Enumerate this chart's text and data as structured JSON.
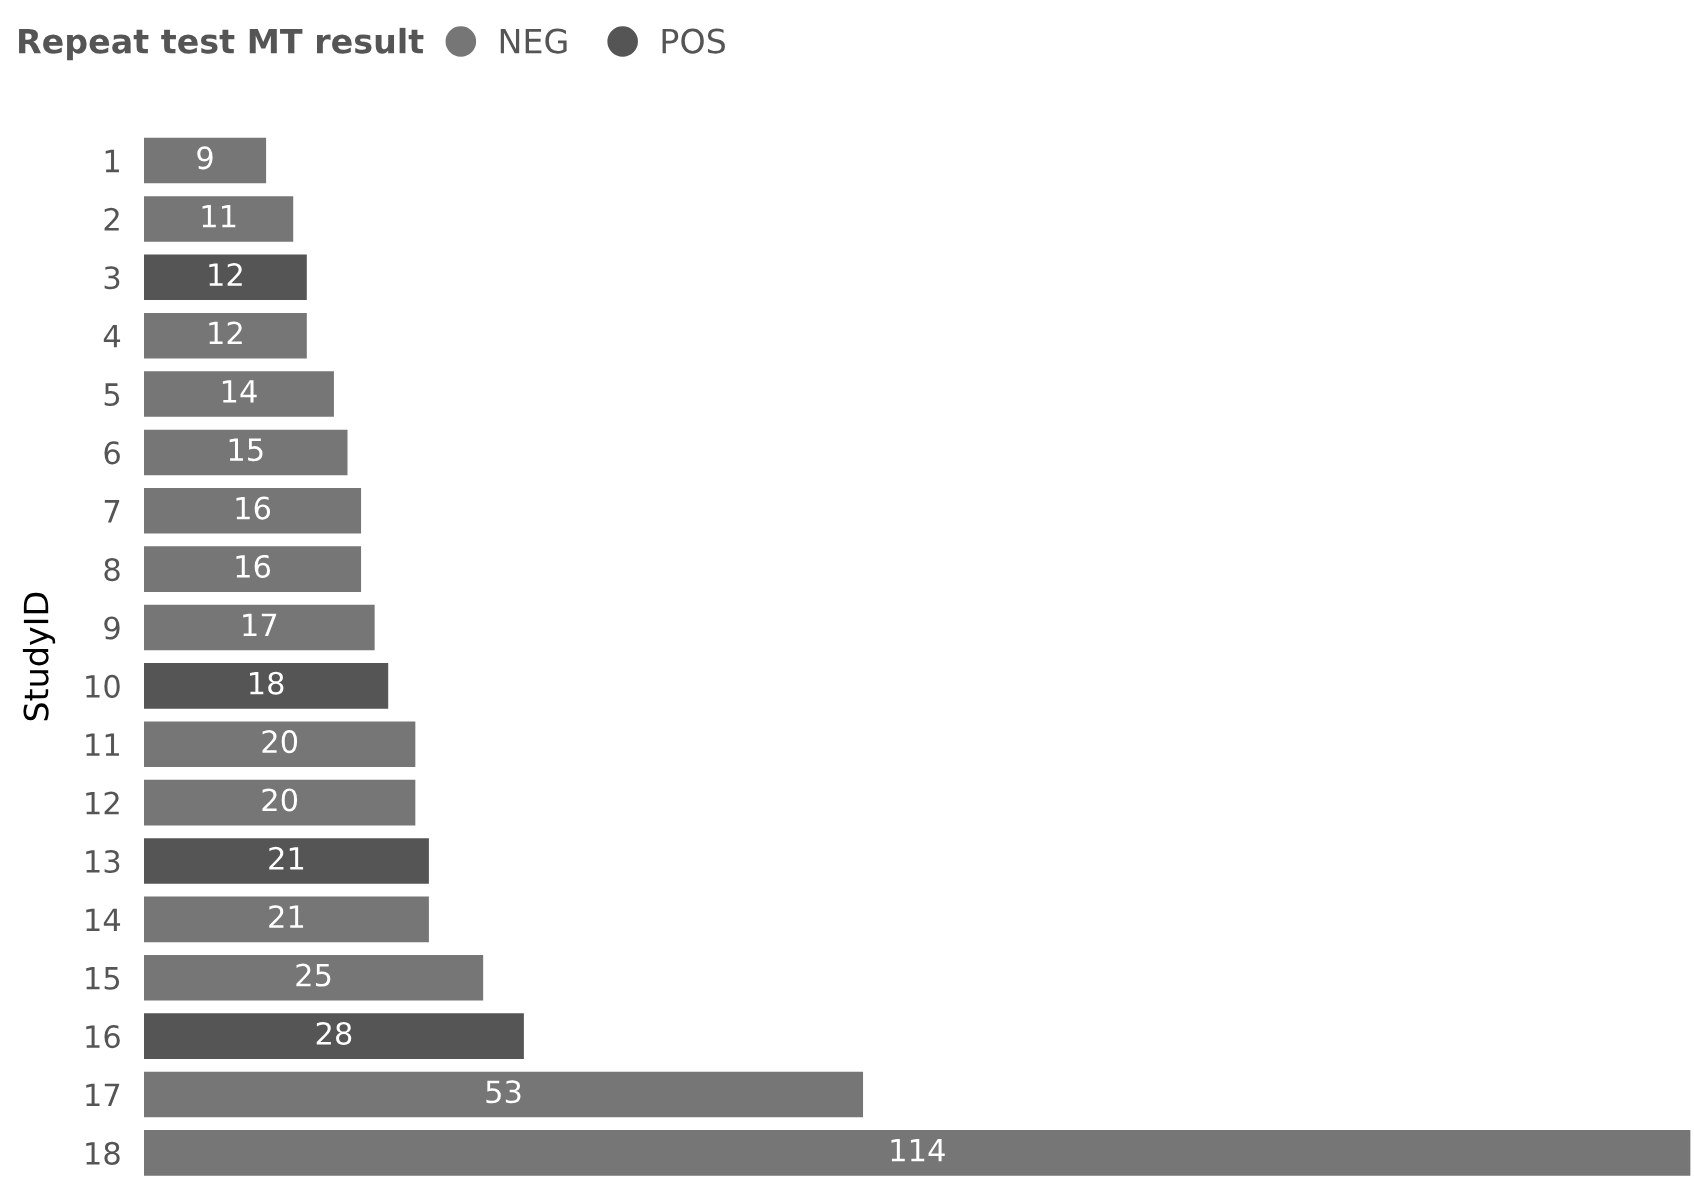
{
  "chart_data": {
    "type": "bar",
    "orientation": "horizontal",
    "stacked": true,
    "legend_title": "Repeat test MT result",
    "legend": "top left",
    "ylabel": "StudyID",
    "data_labels": true,
    "tick_labels": "y",
    "categories": [
      "1",
      "2",
      "3",
      "4",
      "5",
      "6",
      "7",
      "8",
      "9",
      "10",
      "11",
      "12",
      "13",
      "14",
      "15",
      "16",
      "17",
      "18"
    ],
    "series": [
      {
        "name": "NEG",
        "color": "#767676",
        "values": [
          9,
          11,
          null,
          12,
          14,
          15,
          16,
          16,
          17,
          null,
          20,
          20,
          null,
          21,
          25,
          null,
          53,
          114
        ]
      },
      {
        "name": "POS",
        "color": "#555555",
        "values": [
          null,
          null,
          12,
          null,
          null,
          null,
          null,
          null,
          null,
          18,
          null,
          null,
          21,
          null,
          null,
          28,
          null,
          null
        ]
      }
    ]
  }
}
